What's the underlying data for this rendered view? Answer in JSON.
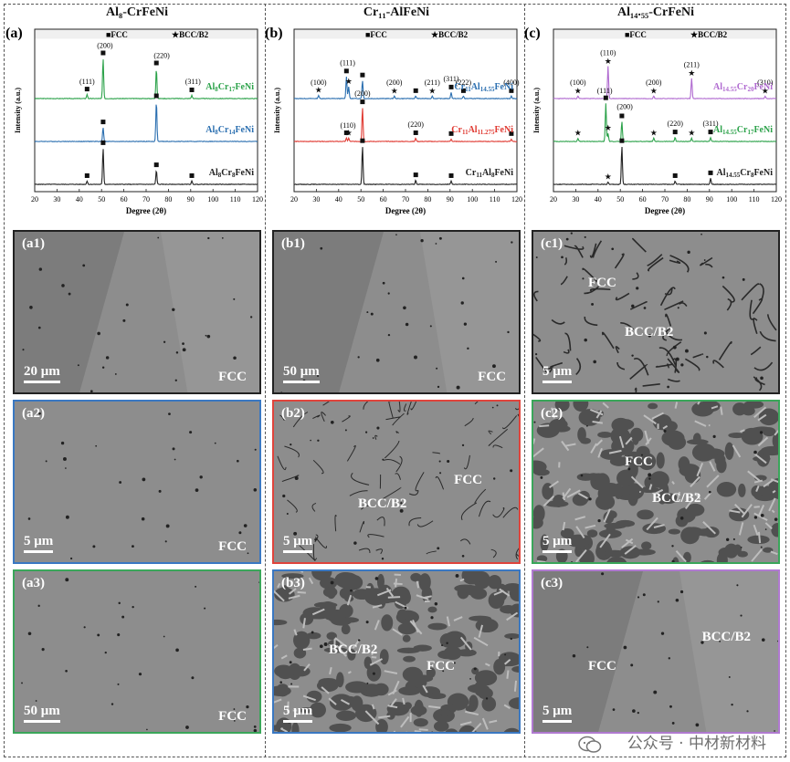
{
  "colors": {
    "black": "#222222",
    "green": "#2ca24a",
    "blue": "#2b6fb0",
    "red": "#e03a32",
    "purple": "#b06ad0",
    "frame_black": "#222222",
    "frame_blue": "#3a78c2",
    "frame_red": "#e0443c",
    "frame_green": "#3aa65a",
    "frame_purple": "#b07ad0"
  },
  "columns": [
    {
      "id": "a",
      "panel_label": "(a)",
      "title": "Al₈-CrFeNi",
      "chart_data": {
        "type": "line",
        "xlabel": "Degree (2θ)",
        "ylabel": "Intensity (a.u.)",
        "xlim": [
          20,
          120
        ],
        "xticks": [
          20,
          30,
          40,
          50,
          60,
          70,
          80,
          90,
          100,
          110,
          120
        ],
        "legend": [
          "■FCC",
          "★BCC/B2"
        ],
        "series": [
          {
            "name": "Al8Cr17FeNi",
            "color": "green",
            "offset": 2,
            "peaks": [
              [
                43.5,
                0.1,
                "s"
              ],
              [
                50.7,
                1.0,
                "s"
              ],
              [
                74.6,
                0.75,
                "s"
              ],
              [
                90.5,
                0.08,
                "s"
              ]
            ],
            "labels": [
              [
                "(111)",
                43.5,
                0.18
              ],
              [
                "(200)",
                51.5,
                1.08
              ],
              [
                "(220)",
                77,
                0.83
              ],
              [
                "(311)",
                91,
                0.18
              ]
            ]
          },
          {
            "name": "Al8Cr14FeNi",
            "color": "blue",
            "offset": 1,
            "peaks": [
              [
                50.7,
                0.35,
                "s"
              ],
              [
                74.6,
                1.0,
                "s"
              ]
            ],
            "labels": []
          },
          {
            "name": "Al8Cr8FeNi",
            "color": "black",
            "offset": 0,
            "peaks": [
              [
                43.5,
                0.08,
                "s"
              ],
              [
                50.7,
                0.9,
                "s"
              ],
              [
                74.6,
                0.35,
                "s"
              ],
              [
                90.5,
                0.08,
                "s"
              ]
            ],
            "labels": []
          }
        ]
      },
      "series_labels": [
        {
          "base": "Al",
          "s1": "8",
          "mid": "Cr",
          "s2": "17",
          "tail": "FeNi"
        },
        {
          "base": "Al",
          "s1": "8",
          "mid": "Cr",
          "s2": "14",
          "tail": "FeNi"
        },
        {
          "base": "Al",
          "s1": "8",
          "mid": "Cr",
          "s2": "8",
          "tail": "FeNi"
        }
      ],
      "panels": [
        {
          "label": "(a1)",
          "scale": "20 μm",
          "phase1": "FCC",
          "phase2": "",
          "frame": "frame_black",
          "style": "a1"
        },
        {
          "label": "(a2)",
          "scale": "5 μm",
          "phase1": "FCC",
          "phase2": "",
          "frame": "frame_blue",
          "style": "a2"
        },
        {
          "label": "(a3)",
          "scale": "50 μm",
          "phase1": "FCC",
          "phase2": "",
          "frame": "frame_green",
          "style": "a3"
        }
      ]
    },
    {
      "id": "b",
      "panel_label": "(b)",
      "title": "Cr₁₁-AlFeNi",
      "chart_data": {
        "type": "line",
        "xlabel": "Degree (2θ)",
        "ylabel": "Intensity (a.u.)",
        "xlim": [
          20,
          120
        ],
        "xticks": [
          20,
          30,
          40,
          50,
          60,
          70,
          80,
          90,
          100,
          110,
          120
        ],
        "legend": [
          "■FCC",
          "★BCC/B2"
        ],
        "series": [
          {
            "name": "Cr11Al14.55FeNi",
            "color": "blue",
            "offset": 2,
            "peaks": [
              [
                31,
                0.08,
                "t"
              ],
              [
                43.5,
                0.55,
                "s"
              ],
              [
                44.5,
                0.3,
                "t"
              ],
              [
                50.7,
                0.45,
                "s"
              ],
              [
                65,
                0.06,
                "t"
              ],
              [
                74.6,
                0.06,
                "s"
              ],
              [
                82,
                0.06,
                "t"
              ],
              [
                90.5,
                0.15,
                "s"
              ],
              [
                96,
                0.06,
                "s"
              ],
              [
                117.5,
                0.06,
                "s"
              ]
            ],
            "labels": [
              [
                "(100)",
                31,
                0.16
              ],
              [
                "(111)",
                44,
                0.65
              ],
              [
                "(200)",
                65,
                0.16
              ],
              [
                "(211)",
                82,
                0.16
              ],
              [
                "(311)",
                90.5,
                0.25
              ],
              [
                "(222)",
                96,
                0.16
              ],
              [
                "(400)",
                117.5,
                0.16
              ]
            ]
          },
          {
            "name": "Cr11Al11.275FeNi",
            "color": "red",
            "offset": 1,
            "peaks": [
              [
                43.5,
                0.08,
                "s"
              ],
              [
                44.5,
                0.08,
                "t"
              ],
              [
                50.7,
                0.85,
                "s"
              ],
              [
                74.6,
                0.08,
                "s"
              ],
              [
                90.5,
                0.06,
                "s"
              ],
              [
                117.5,
                0.06,
                "s"
              ]
            ],
            "labels": [
              [
                "(110)",
                44.2,
                0.16
              ],
              [
                "(200)",
                50.7,
                0.95
              ],
              [
                "(220)",
                74.6,
                0.18
              ]
            ]
          },
          {
            "name": "Cr11Al8FeNi",
            "color": "black",
            "offset": 0,
            "peaks": [
              [
                50.7,
                0.95,
                "s"
              ],
              [
                74.6,
                0.1,
                "s"
              ],
              [
                90.5,
                0.08,
                "s"
              ]
            ],
            "labels": []
          }
        ]
      },
      "series_labels": [
        {
          "base": "Cr",
          "s1": "11",
          "mid": "Al",
          "s2": "14.55",
          "tail": "FeNi"
        },
        {
          "base": "Cr",
          "s1": "11",
          "mid": "Al",
          "s2": "11.275",
          "tail": "FeNi"
        },
        {
          "base": "Cr",
          "s1": "11",
          "mid": "Al",
          "s2": "8",
          "tail": "FeNi"
        }
      ],
      "panels": [
        {
          "label": "(b1)",
          "scale": "50 μm",
          "phase1": "FCC",
          "phase2": "",
          "frame": "frame_black",
          "style": "b1"
        },
        {
          "label": "(b2)",
          "scale": "5 μm",
          "phase1": "FCC",
          "phase2": "BCC/B2",
          "frame": "frame_red",
          "style": "b2"
        },
        {
          "label": "(b3)",
          "scale": "5 μm",
          "phase1": "FCC",
          "phase2": "BCC/B2",
          "frame": "frame_blue",
          "style": "b3"
        }
      ]
    },
    {
      "id": "c",
      "panel_label": "(c)",
      "title": "Al₁₄.₅₅-CrFeNi",
      "chart_data": {
        "type": "line",
        "xlabel": "Degree (2θ)",
        "ylabel": "Intensity (a.u.)",
        "xlim": [
          20,
          120
        ],
        "xticks": [
          20,
          30,
          40,
          50,
          60,
          70,
          80,
          90,
          100,
          110,
          120
        ],
        "legend": [
          "■FCC",
          "★BCC/B2"
        ],
        "series": [
          {
            "name": "Al14.55Cr20FeNi",
            "color": "purple",
            "offset": 2,
            "peaks": [
              [
                31,
                0.06,
                "t"
              ],
              [
                44.5,
                0.8,
                "t"
              ],
              [
                65,
                0.06,
                "t"
              ],
              [
                82,
                0.5,
                "t"
              ],
              [
                115,
                0.06,
                "t"
              ]
            ],
            "labels": [
              [
                "(100)",
                31,
                0.16
              ],
              [
                "(110)",
                44.5,
                0.9
              ],
              [
                "(200)",
                65,
                0.16
              ],
              [
                "(211)",
                82,
                0.6
              ],
              [
                "(310)",
                115,
                0.16
              ]
            ]
          },
          {
            "name": "Al14.55Cr17FeNi",
            "color": "green",
            "offset": 1,
            "peaks": [
              [
                31,
                0.08,
                "t"
              ],
              [
                43.5,
                0.95,
                "s"
              ],
              [
                44.5,
                0.2,
                "t"
              ],
              [
                50.7,
                0.5,
                "s"
              ],
              [
                65,
                0.08,
                "t"
              ],
              [
                74.6,
                0.1,
                "s"
              ],
              [
                82,
                0.08,
                "t"
              ],
              [
                90.5,
                0.1,
                "s"
              ]
            ],
            "labels": [
              [
                "(111)",
                43,
                1.02
              ],
              [
                "(200)",
                52,
                0.62
              ],
              [
                "(220)",
                74.6,
                0.2
              ],
              [
                "(311)",
                90.5,
                0.2
              ]
            ]
          },
          {
            "name": "Al14.55Cr8FeNi",
            "color": "black",
            "offset": 0,
            "peaks": [
              [
                44.5,
                0.06,
                "t"
              ],
              [
                50.7,
                0.95,
                "s"
              ],
              [
                74.6,
                0.08,
                "s"
              ],
              [
                90.5,
                0.15,
                "s"
              ]
            ],
            "labels": []
          }
        ]
      },
      "series_labels": [
        {
          "base": "Al",
          "s1": "14.55",
          "mid": "Cr",
          "s2": "20",
          "tail": "FeNi"
        },
        {
          "base": "Al",
          "s1": "14.55",
          "mid": "Cr",
          "s2": "17",
          "tail": "FeNi"
        },
        {
          "base": "Al",
          "s1": "14.55",
          "mid": "Cr",
          "s2": "8",
          "tail": "FeNi"
        }
      ],
      "panels": [
        {
          "label": "(c1)",
          "scale": "5 μm",
          "phase1": "FCC",
          "phase2": "BCC/B2",
          "frame": "frame_black",
          "style": "c1"
        },
        {
          "label": "(c2)",
          "scale": "5 μm",
          "phase1": "FCC",
          "phase2": "BCC/B2",
          "frame": "frame_green",
          "style": "c2"
        },
        {
          "label": "(c3)",
          "scale": "5 μm",
          "phase1": "FCC",
          "phase2": "BCC/B2",
          "frame": "frame_purple",
          "style": "c3"
        }
      ]
    }
  ],
  "watermark": "公众号 · 中材新材料"
}
